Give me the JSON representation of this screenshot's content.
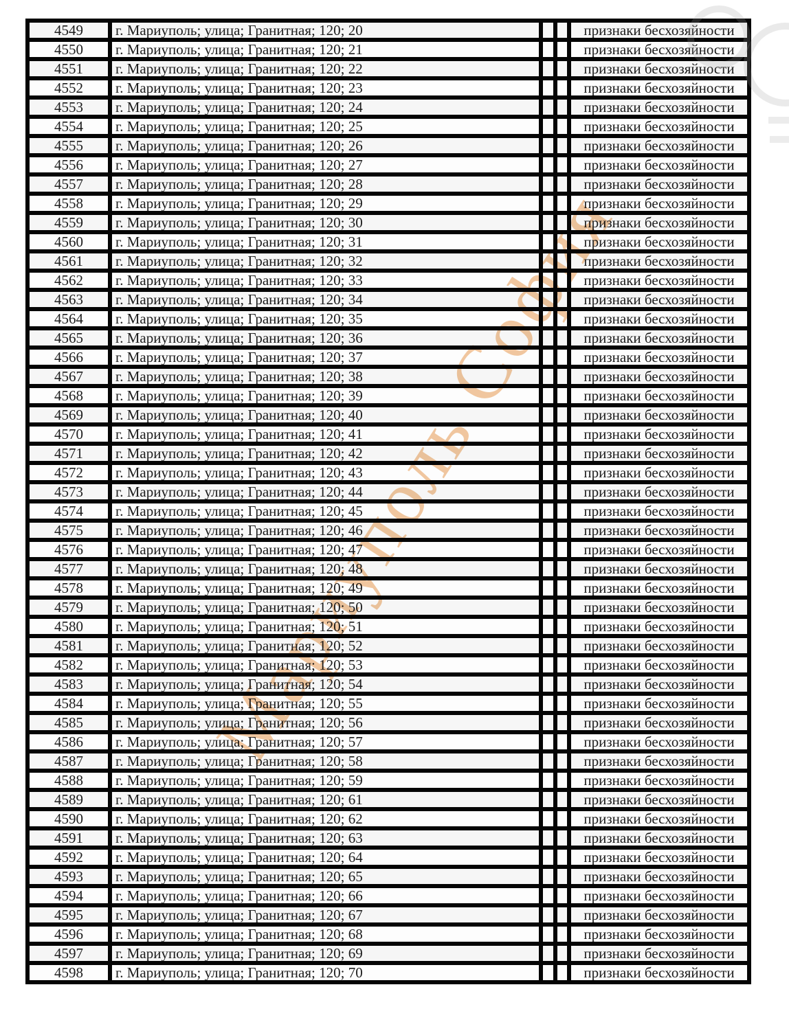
{
  "watermark": {
    "text": "Мариуполь София",
    "color": "#e89a52"
  },
  "table": {
    "rows": [
      {
        "id": "4549",
        "address": "г. Мариуполь; улица; Гранитная; 120; 20",
        "status": "признаки бесхозяйности"
      },
      {
        "id": "4550",
        "address": "г. Мариуполь; улица; Гранитная; 120; 21",
        "status": "признаки бесхозяйности"
      },
      {
        "id": "4551",
        "address": "г. Мариуполь; улица; Гранитная; 120; 22",
        "status": "признаки бесхозяйности"
      },
      {
        "id": "4552",
        "address": "г. Мариуполь; улица; Гранитная; 120; 23",
        "status": "признаки бесхозяйности"
      },
      {
        "id": "4553",
        "address": "г. Мариуполь; улица; Гранитная; 120; 24",
        "status": "признаки бесхозяйности"
      },
      {
        "id": "4554",
        "address": "г. Мариуполь; улица; Гранитная; 120; 25",
        "status": "признаки бесхозяйности"
      },
      {
        "id": "4555",
        "address": "г. Мариуполь; улица; Гранитная; 120; 26",
        "status": "признаки бесхозяйности"
      },
      {
        "id": "4556",
        "address": "г. Мариуполь; улица; Гранитная; 120; 27",
        "status": "признаки бесхозяйности"
      },
      {
        "id": "4557",
        "address": "г. Мариуполь; улица; Гранитная; 120; 28",
        "status": "признаки бесхозяйности"
      },
      {
        "id": "4558",
        "address": "г. Мариуполь; улица; Гранитная; 120; 29",
        "status": "признаки бесхозяйности"
      },
      {
        "id": "4559",
        "address": "г. Мариуполь; улица; Гранитная; 120; 30",
        "status": "признаки бесхозяйности"
      },
      {
        "id": "4560",
        "address": "г. Мариуполь; улица; Гранитная; 120; 31",
        "status": "признаки бесхозяйности"
      },
      {
        "id": "4561",
        "address": "г. Мариуполь; улица; Гранитная; 120; 32",
        "status": "признаки бесхозяйности"
      },
      {
        "id": "4562",
        "address": "г. Мариуполь; улица; Гранитная; 120; 33",
        "status": "признаки бесхозяйности"
      },
      {
        "id": "4563",
        "address": "г. Мариуполь; улица; Гранитная; 120; 34",
        "status": "признаки бесхозяйности"
      },
      {
        "id": "4564",
        "address": "г. Мариуполь; улица; Гранитная; 120; 35",
        "status": "признаки бесхозяйности"
      },
      {
        "id": "4565",
        "address": "г. Мариуполь; улица; Гранитная; 120; 36",
        "status": "признаки бесхозяйности"
      },
      {
        "id": "4566",
        "address": "г. Мариуполь; улица; Гранитная; 120; 37",
        "status": "признаки бесхозяйности"
      },
      {
        "id": "4567",
        "address": "г. Мариуполь; улица; Гранитная; 120; 38",
        "status": "признаки бесхозяйности"
      },
      {
        "id": "4568",
        "address": "г. Мариуполь; улица; Гранитная; 120; 39",
        "status": "признаки бесхозяйности"
      },
      {
        "id": "4569",
        "address": "г. Мариуполь; улица; Гранитная; 120; 40",
        "status": "признаки бесхозяйности"
      },
      {
        "id": "4570",
        "address": "г. Мариуполь; улица; Гранитная; 120; 41",
        "status": "признаки бесхозяйности"
      },
      {
        "id": "4571",
        "address": "г. Мариуполь; улица; Гранитная; 120; 42",
        "status": "признаки бесхозяйности"
      },
      {
        "id": "4572",
        "address": "г. Мариуполь; улица; Гранитная; 120; 43",
        "status": "признаки бесхозяйности"
      },
      {
        "id": "4573",
        "address": "г. Мариуполь; улица; Гранитная; 120; 44",
        "status": "признаки бесхозяйности"
      },
      {
        "id": "4574",
        "address": "г. Мариуполь; улица; Гранитная; 120; 45",
        "status": "признаки бесхозяйности"
      },
      {
        "id": "4575",
        "address": "г. Мариуполь; улица; Гранитная; 120; 46",
        "status": "признаки бесхозяйности"
      },
      {
        "id": "4576",
        "address": "г. Мариуполь; улица; Гранитная; 120; 47",
        "status": "признаки бесхозяйности"
      },
      {
        "id": "4577",
        "address": "г. Мариуполь; улица; Гранитная; 120; 48",
        "status": "признаки бесхозяйности"
      },
      {
        "id": "4578",
        "address": "г. Мариуполь; улица; Гранитная; 120; 49",
        "status": "признаки бесхозяйности"
      },
      {
        "id": "4579",
        "address": "г. Мариуполь; улица; Гранитная; 120; 50",
        "status": "признаки бесхозяйности"
      },
      {
        "id": "4580",
        "address": "г. Мариуполь; улица; Гранитная; 120; 51",
        "status": "признаки бесхозяйности"
      },
      {
        "id": "4581",
        "address": "г. Мариуполь; улица; Гранитная; 120; 52",
        "status": "признаки бесхозяйности"
      },
      {
        "id": "4582",
        "address": "г. Мариуполь; улица; Гранитная; 120; 53",
        "status": "признаки бесхозяйности"
      },
      {
        "id": "4583",
        "address": "г. Мариуполь; улица; Гранитная; 120; 54",
        "status": "признаки бесхозяйности"
      },
      {
        "id": "4584",
        "address": "г. Мариуполь; улица; Гранитная; 120; 55",
        "status": "признаки бесхозяйности"
      },
      {
        "id": "4585",
        "address": "г. Мариуполь; улица; Гранитная; 120; 56",
        "status": "признаки бесхозяйности"
      },
      {
        "id": "4586",
        "address": "г. Мариуполь; улица; Гранитная; 120; 57",
        "status": "признаки бесхозяйности"
      },
      {
        "id": "4587",
        "address": "г. Мариуполь; улица; Гранитная; 120; 58",
        "status": "признаки бесхозяйности"
      },
      {
        "id": "4588",
        "address": "г. Мариуполь; улица; Гранитная; 120; 59",
        "status": "признаки бесхозяйности"
      },
      {
        "id": "4589",
        "address": "г. Мариуполь; улица; Гранитная; 120; 61",
        "status": "признаки бесхозяйности"
      },
      {
        "id": "4590",
        "address": "г. Мариуполь; улица; Гранитная; 120; 62",
        "status": "признаки бесхозяйности"
      },
      {
        "id": "4591",
        "address": "г. Мариуполь; улица; Гранитная; 120; 63",
        "status": "признаки бесхозяйности"
      },
      {
        "id": "4592",
        "address": "г. Мариуполь; улица; Гранитная; 120; 64",
        "status": "признаки бесхозяйности"
      },
      {
        "id": "4593",
        "address": "г. Мариуполь; улица; Гранитная; 120; 65",
        "status": "признаки бесхозяйности"
      },
      {
        "id": "4594",
        "address": "г. Мариуполь; улица; Гранитная; 120; 66",
        "status": "признаки бесхозяйности"
      },
      {
        "id": "4595",
        "address": "г. Мариуполь; улица; Гранитная; 120; 67",
        "status": "признаки бесхозяйности"
      },
      {
        "id": "4596",
        "address": "г. Мариуполь; улица; Гранитная; 120; 68",
        "status": "признаки бесхозяйности"
      },
      {
        "id": "4597",
        "address": "г. Мариуполь; улица; Гранитная; 120; 69",
        "status": "признаки бесхозяйности"
      },
      {
        "id": "4598",
        "address": "г. Мариуполь; улица; Гранитная; 120; 70",
        "status": "признаки бесхозяйности"
      }
    ]
  }
}
